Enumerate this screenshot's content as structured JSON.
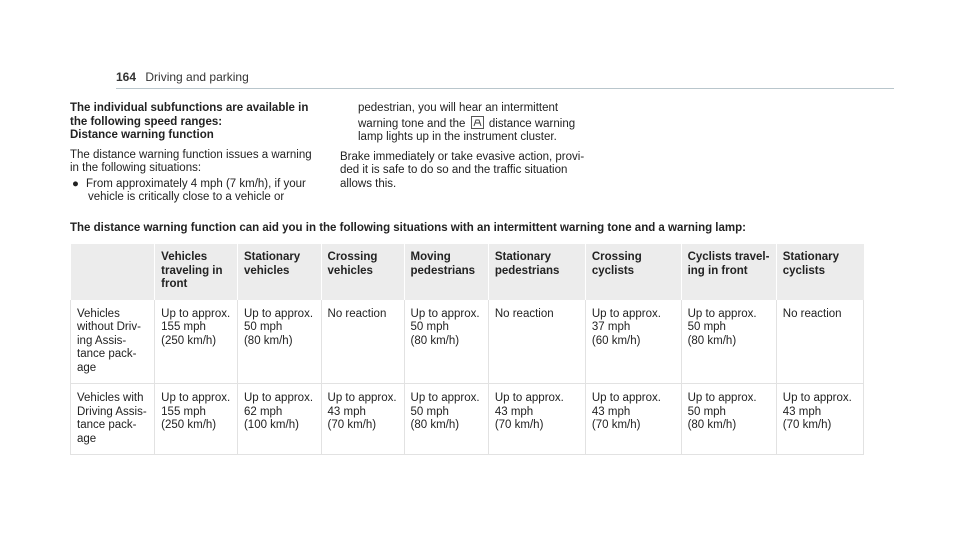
{
  "header": {
    "page_number": "164",
    "section": "Driving and parking"
  },
  "left_col": {
    "heading_1": "The individual subfunctions are available in",
    "heading_2": "the following speed ranges:",
    "heading_3": "Distance warning function",
    "intro_1": "The distance warning function issues a warning",
    "intro_2": "in the following situations:",
    "bullet_1a": "From approximately 4 mph (7 km/h), if your",
    "bullet_1b": "vehicle is critically close to a vehicle or"
  },
  "right_col": {
    "cont_1": "pedestrian, you will hear an intermittent",
    "cont_2a": "warning tone and the",
    "cont_2b": "distance warning",
    "cont_3": "lamp lights up in the instrument cluster.",
    "brake_1": "Brake immediately or take evasive action, provi-",
    "brake_2": "ded it is safe to do so and the traffic situation",
    "brake_3": "allows this."
  },
  "caption": "The distance warning function can aid you in the following situations with an intermittent warning tone and a warning lamp:",
  "table": {
    "headers": [
      "",
      "Vehicles\ntraveling in\nfront",
      "Stationary\nvehicles",
      "Crossing\nvehicles",
      "Moving\npedestrians",
      "Stationary\npedestrians",
      "Crossing\ncyclists",
      "Cyclists travel-\ning in front",
      "Stationary\ncyclists"
    ],
    "rows": [
      [
        "Vehicles\nwithout Driv-\ning Assis-\ntance pack-\nage",
        "Up to approx.\n155 mph\n(250 km/h)",
        "Up to approx.\n50 mph\n(80 km/h)",
        "No reaction",
        "Up to approx.\n50 mph\n(80 km/h)",
        "No reaction",
        "Up to approx.\n37 mph\n(60 km/h)",
        "Up to approx.\n50 mph\n(80 km/h)",
        "No reaction"
      ],
      [
        "Vehicles with\nDriving Assis-\ntance pack-\nage",
        "Up to approx.\n155 mph\n(250 km/h)",
        "Up to approx.\n62 mph\n(100 km/h)",
        "Up to approx.\n43 mph\n(70 km/h)",
        "Up to approx.\n50 mph\n(80 km/h)",
        "Up to approx.\n43 mph\n(70 km/h)",
        "Up to approx.\n43 mph\n(70 km/h)",
        "Up to approx.\n50 mph\n(80 km/h)",
        "Up to approx.\n43 mph\n(70 km/h)"
      ]
    ]
  }
}
